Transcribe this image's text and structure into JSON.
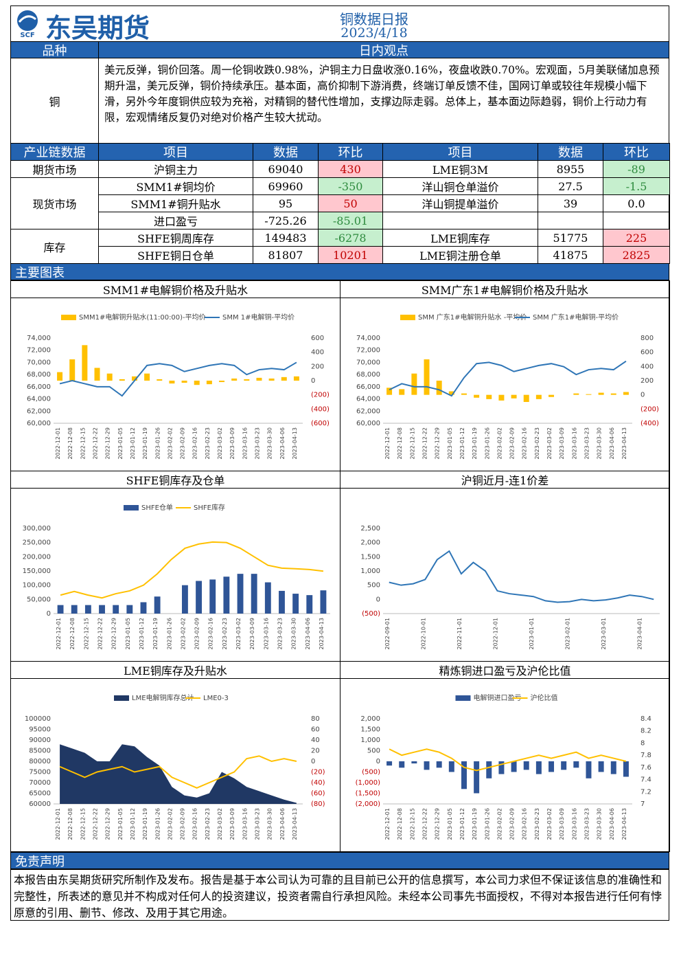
{
  "header": {
    "logo": "东吴期货",
    "logo_sub": "SCF",
    "title": "铜数据日报",
    "date": "2023/4/18"
  },
  "view": {
    "headers": [
      "品种",
      "日内观点"
    ],
    "variety": "铜",
    "text": "美元反弹，铜价回落。周一伦铜收跌0.98%，沪铜主力日盘收涨0.16%，夜盘收跌0.70%。宏观面，5月美联储加息预期升温，美元反弹，铜价持续承压。基本面，高价抑制下游消费，终端订单反馈不佳，国网订单或较往年规模小幅下滑，另外今年度铜供应较为充裕，对精铜的替代性增加，支撑边际走弱。总体上，基本面边际趋弱，铜价上行动力有限，宏观情绪反复仍对绝对价格产生较大扰动。"
  },
  "table": {
    "headers": [
      "产业链数据",
      "项目",
      "数据",
      "环比",
      "项目",
      "数据",
      "环比"
    ],
    "sections": [
      {
        "name": "期货市场",
        "rows": [
          [
            "沪铜主力",
            "69040",
            "430",
            "LME铜3M",
            "8955",
            "-89"
          ]
        ]
      },
      {
        "name": "现货市场",
        "rows": [
          [
            "SMM1#铜均价",
            "69960",
            "-350",
            "洋山铜仓单溢价",
            "27.5",
            "-1.5"
          ],
          [
            "SMM1#铜升贴水",
            "95",
            "50",
            "洋山铜提单溢价",
            "39",
            "0.0"
          ],
          [
            "进口盈亏",
            "-725.26",
            "-85.01"
          ]
        ]
      },
      {
        "name": "库存",
        "rows": [
          [
            "SHFE铜周库存",
            "149483",
            "-6278",
            "LME铜库存",
            "51775",
            "225"
          ],
          [
            "SHFE铜日仓单",
            "81807",
            "10201",
            "LME铜注册仓单",
            "41875",
            "2825"
          ]
        ]
      }
    ]
  },
  "charts_header": "主要图表",
  "charts": [
    {
      "type": "combo",
      "title": "SMM1#电解铜价格及升贴水",
      "x": [
        "2022-12-01",
        "2022-12-08",
        "2022-12-15",
        "2022-12-22",
        "2022-12-29",
        "2023-01-05",
        "2023-01-12",
        "2023-01-19",
        "2023-01-26",
        "2023-02-02",
        "2023-02-09",
        "2023-02-16",
        "2023-02-23",
        "2023-03-02",
        "2023-03-09",
        "2023-03-16",
        "2023-03-23",
        "2023-03-30",
        "2023-04-06",
        "2023-04-13"
      ],
      "ylim": [
        60000,
        74000
      ],
      "yticks": [
        {
          "value": 60000,
          "label": "60,000"
        },
        {
          "value": 62000,
          "label": "62,000"
        },
        {
          "value": 64000,
          "label": "64,000"
        },
        {
          "value": 66000,
          "label": "66,000"
        },
        {
          "value": 68000,
          "label": "68,000"
        },
        {
          "value": 70000,
          "label": "70,000"
        },
        {
          "value": 72000,
          "label": "72,000"
        },
        {
          "value": 74000,
          "label": "74,000"
        }
      ],
      "y2lim": [
        -600,
        600
      ],
      "y2ticks": [
        {
          "value": -600,
          "label": "(600)"
        },
        {
          "value": -400,
          "label": "(400)"
        },
        {
          "value": -200,
          "label": "(200)"
        },
        0,
        200,
        400,
        600
      ],
      "series": [
        {
          "name": "SMM1#电解铜升贴水(11:00:00)-平均价",
          "type": "bar",
          "axis": "y2",
          "color": "#ffc000",
          "values": [
            120,
            300,
            500,
            180,
            100,
            20,
            60,
            100,
            20,
            -40,
            -30,
            -60,
            -50,
            -20,
            30,
            20,
            40,
            30,
            50,
            60
          ]
        },
        {
          "name": "SMM 1#电解铜-平均价",
          "type": "line",
          "color": "#2e75b6",
          "values": [
            66500,
            67000,
            66500,
            66000,
            66000,
            64500,
            67000,
            69500,
            69800,
            69500,
            68500,
            69000,
            69500,
            69800,
            69500,
            68000,
            68800,
            69000,
            68800,
            70000
          ]
        }
      ]
    },
    {
      "type": "combo",
      "title": "SMM广东1#电解铜价格及升贴水",
      "x": [
        "2022-12-01",
        "2022-12-08",
        "2022-12-15",
        "2022-12-22",
        "2022-12-29",
        "2023-01-05",
        "2023-01-12",
        "2023-01-19",
        "2023-01-26",
        "2023-02-02",
        "2023-02-09",
        "2023-02-16",
        "2023-02-23",
        "2023-03-02",
        "2023-03-09",
        "2023-03-16",
        "2023-03-23",
        "2023-03-30",
        "2023-04-06",
        "2023-04-13"
      ],
      "ylim": [
        60000,
        74000
      ],
      "yticks": [
        {
          "value": 60000,
          "label": "60,000"
        },
        {
          "value": 62000,
          "label": "62,000"
        },
        {
          "value": 64000,
          "label": "64,000"
        },
        {
          "value": 66000,
          "label": "66,000"
        },
        {
          "value": 68000,
          "label": "68,000"
        },
        {
          "value": 70000,
          "label": "70,000"
        },
        {
          "value": 72000,
          "label": "72,000"
        },
        {
          "value": 74000,
          "label": "74,000"
        }
      ],
      "y2lim": [
        -400,
        800
      ],
      "y2ticks": [
        {
          "value": -400,
          "label": "(400)"
        },
        {
          "value": -200,
          "label": "(200)"
        },
        0,
        200,
        400,
        600,
        800
      ],
      "series": [
        {
          "name": "SMM 广东1#电解铜升贴水 -平均价",
          "type": "bar",
          "axis": "y2",
          "color": "#ffc000",
          "values": [
            100,
            80,
            300,
            500,
            200,
            50,
            20,
            -40,
            -60,
            -80,
            -50,
            -100,
            -60,
            -30,
            0,
            20,
            10,
            30,
            20,
            40
          ]
        },
        {
          "name": "SMM 广东1#电解铜-平均价",
          "type": "line",
          "color": "#2e75b6",
          "values": [
            65500,
            66500,
            66000,
            66000,
            65500,
            64500,
            67500,
            69800,
            70000,
            69500,
            68500,
            69000,
            69500,
            69800,
            69300,
            68000,
            68800,
            69000,
            68800,
            70200
          ]
        }
      ]
    },
    {
      "type": "combo",
      "title": "SHFE铜库存及仓单",
      "x": [
        "2022-12-01",
        "2022-12-08",
        "2022-12-15",
        "2022-12-22",
        "2022-12-29",
        "2023-01-05",
        "2023-01-12",
        "2023-01-19",
        "2023-01-26",
        "2023-02-02",
        "2023-02-09",
        "2023-02-16",
        "2023-02-23",
        "2023-03-02",
        "2023-03-09",
        "2023-03-16",
        "2023-03-23",
        "2023-03-30",
        "2023-04-06",
        "2023-04-13"
      ],
      "ylim": [
        0,
        300000
      ],
      "yticks": [
        0,
        {
          "value": 50000,
          "label": "50,000"
        },
        {
          "value": 100000,
          "label": "100,000"
        },
        {
          "value": 150000,
          "label": "150,000"
        },
        {
          "value": 200000,
          "label": "200,000"
        },
        {
          "value": 250000,
          "label": "250,000"
        },
        {
          "value": 300000,
          "label": "300,000"
        }
      ],
      "series": [
        {
          "name": "SHFE仓单",
          "type": "bar",
          "color": "#2f5597",
          "values": [
            30000,
            30000,
            30000,
            30000,
            30000,
            30000,
            40000,
            60000,
            0,
            100000,
            115000,
            120000,
            130000,
            140000,
            140000,
            110000,
            80000,
            70000,
            65000,
            81807
          ]
        },
        {
          "name": "SHFE库存",
          "type": "line",
          "color": "#ffc000",
          "values": [
            65000,
            78000,
            65000,
            55000,
            70000,
            80000,
            100000,
            140000,
            190000,
            230000,
            245000,
            252000,
            250000,
            230000,
            200000,
            170000,
            160000,
            158000,
            155000,
            149483
          ]
        }
      ]
    },
    {
      "type": "line",
      "title": "沪铜近月-连1价差",
      "x": [
        "2022-09-01",
        null,
        null,
        "2022-10-01",
        null,
        null,
        "2022-11-01",
        null,
        null,
        "2022-12-01",
        null,
        null,
        "2023-01-01",
        null,
        null,
        "2023-02-01",
        null,
        null,
        "2023-03-01",
        null,
        null,
        "2023-04-01",
        null
      ],
      "ylim": [
        -500,
        2500
      ],
      "yticks": [
        {
          "value": -500,
          "label": "(500)"
        },
        0,
        500,
        {
          "value": 1000,
          "label": "1,000"
        },
        {
          "value": 1500,
          "label": "1,500"
        },
        {
          "value": 2000,
          "label": "2,000"
        },
        {
          "value": 2500,
          "label": "2,500"
        }
      ],
      "series": [
        {
          "type": "line",
          "color": "#2e75b6",
          "values": [
            600,
            500,
            550,
            700,
            1400,
            1700,
            900,
            1300,
            1000,
            300,
            200,
            150,
            100,
            -50,
            -100,
            -80,
            0,
            -50,
            -20,
            50,
            150,
            100,
            0
          ]
        }
      ]
    },
    {
      "type": "combo",
      "title": "LME铜库存及升贴水",
      "x": [
        "2022-12-01",
        "2022-12-08",
        "2022-12-15",
        "2022-12-22",
        "2022-12-29",
        "2023-01-05",
        "2023-01-12",
        "2023-01-19",
        "2023-01-26",
        "2023-02-02",
        "2023-02-09",
        "2023-02-16",
        "2023-02-23",
        "2023-03-02",
        "2023-03-09",
        "2023-03-16",
        "2023-03-23",
        "2023-03-30",
        "2023-04-06",
        "2023-04-13"
      ],
      "ylim": [
        60000,
        100000
      ],
      "yticks": [
        60000,
        65000,
        70000,
        75000,
        80000,
        85000,
        90000,
        95000,
        100000
      ],
      "y2lim": [
        -80,
        80
      ],
      "y2ticks": [
        {
          "value": -80,
          "label": "(80)"
        },
        {
          "value": -60,
          "label": "(60)"
        },
        {
          "value": -40,
          "label": "(40)"
        },
        {
          "value": -20,
          "label": "(20)"
        },
        0,
        20,
        40,
        60,
        80
      ],
      "series": [
        {
          "name": "LME电解铜库存总计",
          "type": "area",
          "color": "#203864",
          "values": [
            88000,
            86000,
            84000,
            80000,
            80000,
            88000,
            87000,
            82000,
            78000,
            68000,
            64000,
            63000,
            65000,
            75000,
            72000,
            68000,
            66000,
            64000,
            62000,
            60500
          ]
        },
        {
          "name": "LME0-3",
          "type": "line",
          "axis": "y2",
          "color": "#ffc000",
          "values": [
            -10,
            -20,
            -30,
            -20,
            -15,
            -10,
            -20,
            -15,
            -10,
            -30,
            -40,
            -50,
            -40,
            -30,
            -20,
            5,
            10,
            0,
            5,
            0
          ]
        }
      ]
    },
    {
      "type": "combo",
      "title": "精炼铜进口盈亏及沪伦比值",
      "x": [
        "2022-12-01",
        "2022-12-08",
        "2022-12-15",
        "2022-12-22",
        "2022-12-29",
        "2023-01-05",
        "2023-01-12",
        "2023-01-19",
        "2023-01-26",
        "2023-02-02",
        "2023-02-09",
        "2023-02-16",
        "2023-02-23",
        "2023-03-02",
        "2023-03-09",
        "2023-03-16",
        "2023-03-23",
        "2023-03-30",
        "2023-04-06",
        "2023-04-13"
      ],
      "ylim": [
        -2000,
        2000
      ],
      "yticks": [
        {
          "value": -2000,
          "label": "(2,000)"
        },
        {
          "value": -1500,
          "label": "(1,500)"
        },
        {
          "value": -1000,
          "label": "(1,000)"
        },
        {
          "value": -500,
          "label": "(500)"
        },
        0,
        500,
        {
          "value": 1000,
          "label": "1,000"
        },
        {
          "value": 1500,
          "label": "1,500"
        },
        {
          "value": 2000,
          "label": "2,000"
        }
      ],
      "y2lim": [
        7,
        8.4
      ],
      "y2ticks": [
        7,
        7.2,
        7.4,
        7.6,
        7.8,
        8,
        8.2,
        8.4
      ],
      "series": [
        {
          "name": "电解铜进口盈亏",
          "type": "bar",
          "color": "#2f5597",
          "values": [
            -200,
            -300,
            -100,
            -400,
            -300,
            -500,
            -1300,
            -1500,
            -800,
            -600,
            -500,
            -400,
            -600,
            -500,
            -400,
            -300,
            -800,
            -500,
            -600,
            -725.26
          ]
        },
        {
          "name": "沪伦比值",
          "type": "line",
          "axis": "y2",
          "color": "#ffc000",
          "values": [
            7.9,
            7.8,
            7.85,
            7.9,
            7.85,
            7.75,
            7.6,
            7.55,
            7.6,
            7.65,
            7.7,
            7.75,
            7.8,
            7.75,
            7.8,
            7.85,
            7.75,
            7.8,
            7.75,
            7.7
          ]
        }
      ]
    }
  ],
  "disclaimer": {
    "title": "免责声明",
    "text": "本报告由东吴期货研究所制作及发布。报告是基于本公司认为可靠的且目前已公开的信息撰写，本公司力求但不保证该信息的准确性和完整性，所表述的意见并不构成对任何人的投资建议，投资者需自行承担风险。未经本公司事先书面授权，不得对本报告进行任何有悖原意的引用、删节、修改、及用于其它用途。"
  }
}
